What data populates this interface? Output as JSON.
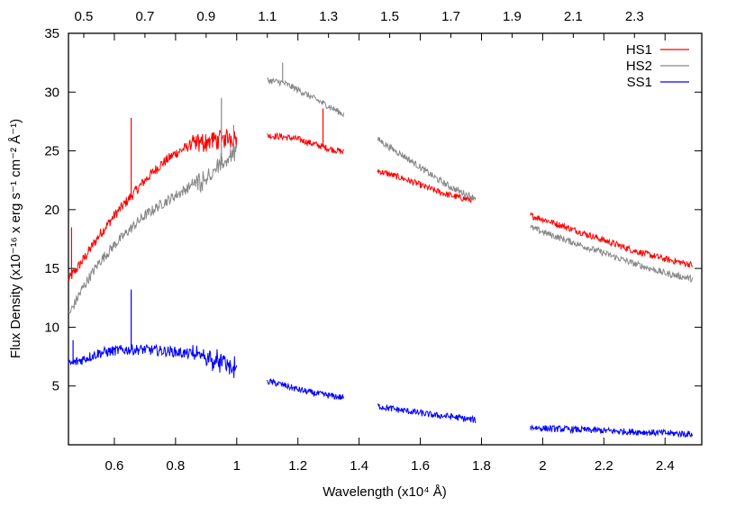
{
  "chart_data": {
    "type": "line",
    "xlabel": "Wavelength (x10⁴ Å)",
    "ylabel": "Flux Density (x10⁻¹⁶ x erg s⁻¹ cm⁻² Å⁻¹)",
    "xlim": [
      0.45,
      2.52
    ],
    "ylim": [
      0,
      35
    ],
    "xticks": [
      "0.6",
      "0.8",
      "1",
      "1.2",
      "1.4",
      "1.6",
      "1.8",
      "2",
      "2.2",
      "2.4"
    ],
    "xtick_values": [
      0.6,
      0.8,
      1.0,
      1.2,
      1.4,
      1.6,
      1.8,
      2.0,
      2.2,
      2.4
    ],
    "x2ticks": [
      "0.5",
      "0.7",
      "0.9",
      "1.1",
      "1.3",
      "1.5",
      "1.7",
      "1.9",
      "2.1",
      "2.3"
    ],
    "x2tick_values": [
      0.5,
      0.7,
      0.9,
      1.1,
      1.3,
      1.5,
      1.7,
      1.9,
      2.1,
      2.3
    ],
    "yticks": [
      "5",
      "10",
      "15",
      "20",
      "25",
      "30",
      "35"
    ],
    "ytick_values": [
      5,
      10,
      15,
      20,
      25,
      30,
      35
    ],
    "grid": false,
    "legend_position": "top-right",
    "series": [
      {
        "name": "HS1",
        "color": "#ff0000",
        "segments": [
          [
            [
              0.45,
              14.0
            ],
            [
              0.5,
              15.8
            ],
            [
              0.55,
              17.8
            ],
            [
              0.6,
              19.5
            ],
            [
              0.65,
              21.0
            ],
            [
              0.7,
              22.5
            ],
            [
              0.75,
              23.8
            ],
            [
              0.8,
              24.8
            ],
            [
              0.85,
              25.5
            ],
            [
              0.9,
              25.8
            ],
            [
              0.95,
              26.0
            ],
            [
              1.0,
              26.2
            ]
          ],
          [
            [
              1.1,
              26.3
            ],
            [
              1.15,
              26.2
            ],
            [
              1.2,
              26.0
            ],
            [
              1.25,
              25.6
            ],
            [
              1.3,
              25.2
            ],
            [
              1.35,
              24.9
            ]
          ],
          [
            [
              1.46,
              23.3
            ],
            [
              1.5,
              23.0
            ],
            [
              1.55,
              22.6
            ],
            [
              1.6,
              22.1
            ],
            [
              1.65,
              21.6
            ],
            [
              1.7,
              21.2
            ],
            [
              1.75,
              20.9
            ],
            [
              1.78,
              20.8
            ]
          ],
          [
            [
              1.96,
              19.5
            ],
            [
              2.0,
              19.2
            ],
            [
              2.1,
              18.3
            ],
            [
              2.2,
              17.4
            ],
            [
              2.3,
              16.5
            ],
            [
              2.4,
              15.8
            ],
            [
              2.49,
              15.3
            ]
          ]
        ],
        "spikes": [
          [
            0.655,
            27.8
          ],
          [
            1.282,
            28.6
          ],
          [
            0.46,
            18.5
          ]
        ]
      },
      {
        "name": "HS2",
        "color": "#888888",
        "segments": [
          [
            [
              0.45,
              11.0
            ],
            [
              0.5,
              13.5
            ],
            [
              0.55,
              15.5
            ],
            [
              0.6,
              17.0
            ],
            [
              0.65,
              18.3
            ],
            [
              0.7,
              19.5
            ],
            [
              0.75,
              20.4
            ],
            [
              0.8,
              21.2
            ],
            [
              0.85,
              22.0
            ],
            [
              0.9,
              22.8
            ],
            [
              0.95,
              23.8
            ],
            [
              1.0,
              25.2
            ]
          ],
          [
            [
              1.1,
              31.0
            ],
            [
              1.15,
              30.8
            ],
            [
              1.2,
              30.2
            ],
            [
              1.25,
              29.5
            ],
            [
              1.3,
              28.8
            ],
            [
              1.35,
              28.1
            ]
          ],
          [
            [
              1.46,
              26.0
            ],
            [
              1.5,
              25.3
            ],
            [
              1.55,
              24.5
            ],
            [
              1.6,
              23.6
            ],
            [
              1.65,
              22.7
            ],
            [
              1.7,
              21.9
            ],
            [
              1.75,
              21.3
            ],
            [
              1.78,
              21.0
            ]
          ],
          [
            [
              1.96,
              18.5
            ],
            [
              2.0,
              18.1
            ],
            [
              2.1,
              17.2
            ],
            [
              2.2,
              16.3
            ],
            [
              2.3,
              15.4
            ],
            [
              2.4,
              14.6
            ],
            [
              2.49,
              14.1
            ]
          ]
        ],
        "spikes": [
          [
            0.95,
            29.5
          ],
          [
            0.99,
            27.2
          ],
          [
            1.15,
            32.5
          ]
        ]
      },
      {
        "name": "SS1",
        "color": "#0000ff",
        "segments": [
          [
            [
              0.45,
              6.8
            ],
            [
              0.5,
              7.3
            ],
            [
              0.55,
              7.8
            ],
            [
              0.6,
              8.0
            ],
            [
              0.65,
              8.1
            ],
            [
              0.7,
              8.1
            ],
            [
              0.75,
              8.0
            ],
            [
              0.8,
              7.9
            ],
            [
              0.85,
              7.7
            ],
            [
              0.9,
              7.5
            ],
            [
              0.95,
              7.0
            ],
            [
              1.0,
              6.4
            ]
          ],
          [
            [
              1.1,
              5.4
            ],
            [
              1.15,
              5.1
            ],
            [
              1.2,
              4.7
            ],
            [
              1.25,
              4.4
            ],
            [
              1.3,
              4.2
            ],
            [
              1.35,
              4.0
            ]
          ],
          [
            [
              1.46,
              3.3
            ],
            [
              1.5,
              3.1
            ],
            [
              1.55,
              2.9
            ],
            [
              1.6,
              2.7
            ],
            [
              1.65,
              2.5
            ],
            [
              1.7,
              2.4
            ],
            [
              1.75,
              2.2
            ],
            [
              1.78,
              2.1
            ]
          ],
          [
            [
              1.96,
              1.5
            ],
            [
              2.0,
              1.4
            ],
            [
              2.1,
              1.3
            ],
            [
              2.2,
              1.2
            ],
            [
              2.3,
              1.1
            ],
            [
              2.4,
              1.0
            ],
            [
              2.49,
              0.9
            ]
          ]
        ],
        "spikes": [
          [
            0.655,
            13.2
          ],
          [
            0.465,
            8.9
          ]
        ]
      }
    ]
  }
}
